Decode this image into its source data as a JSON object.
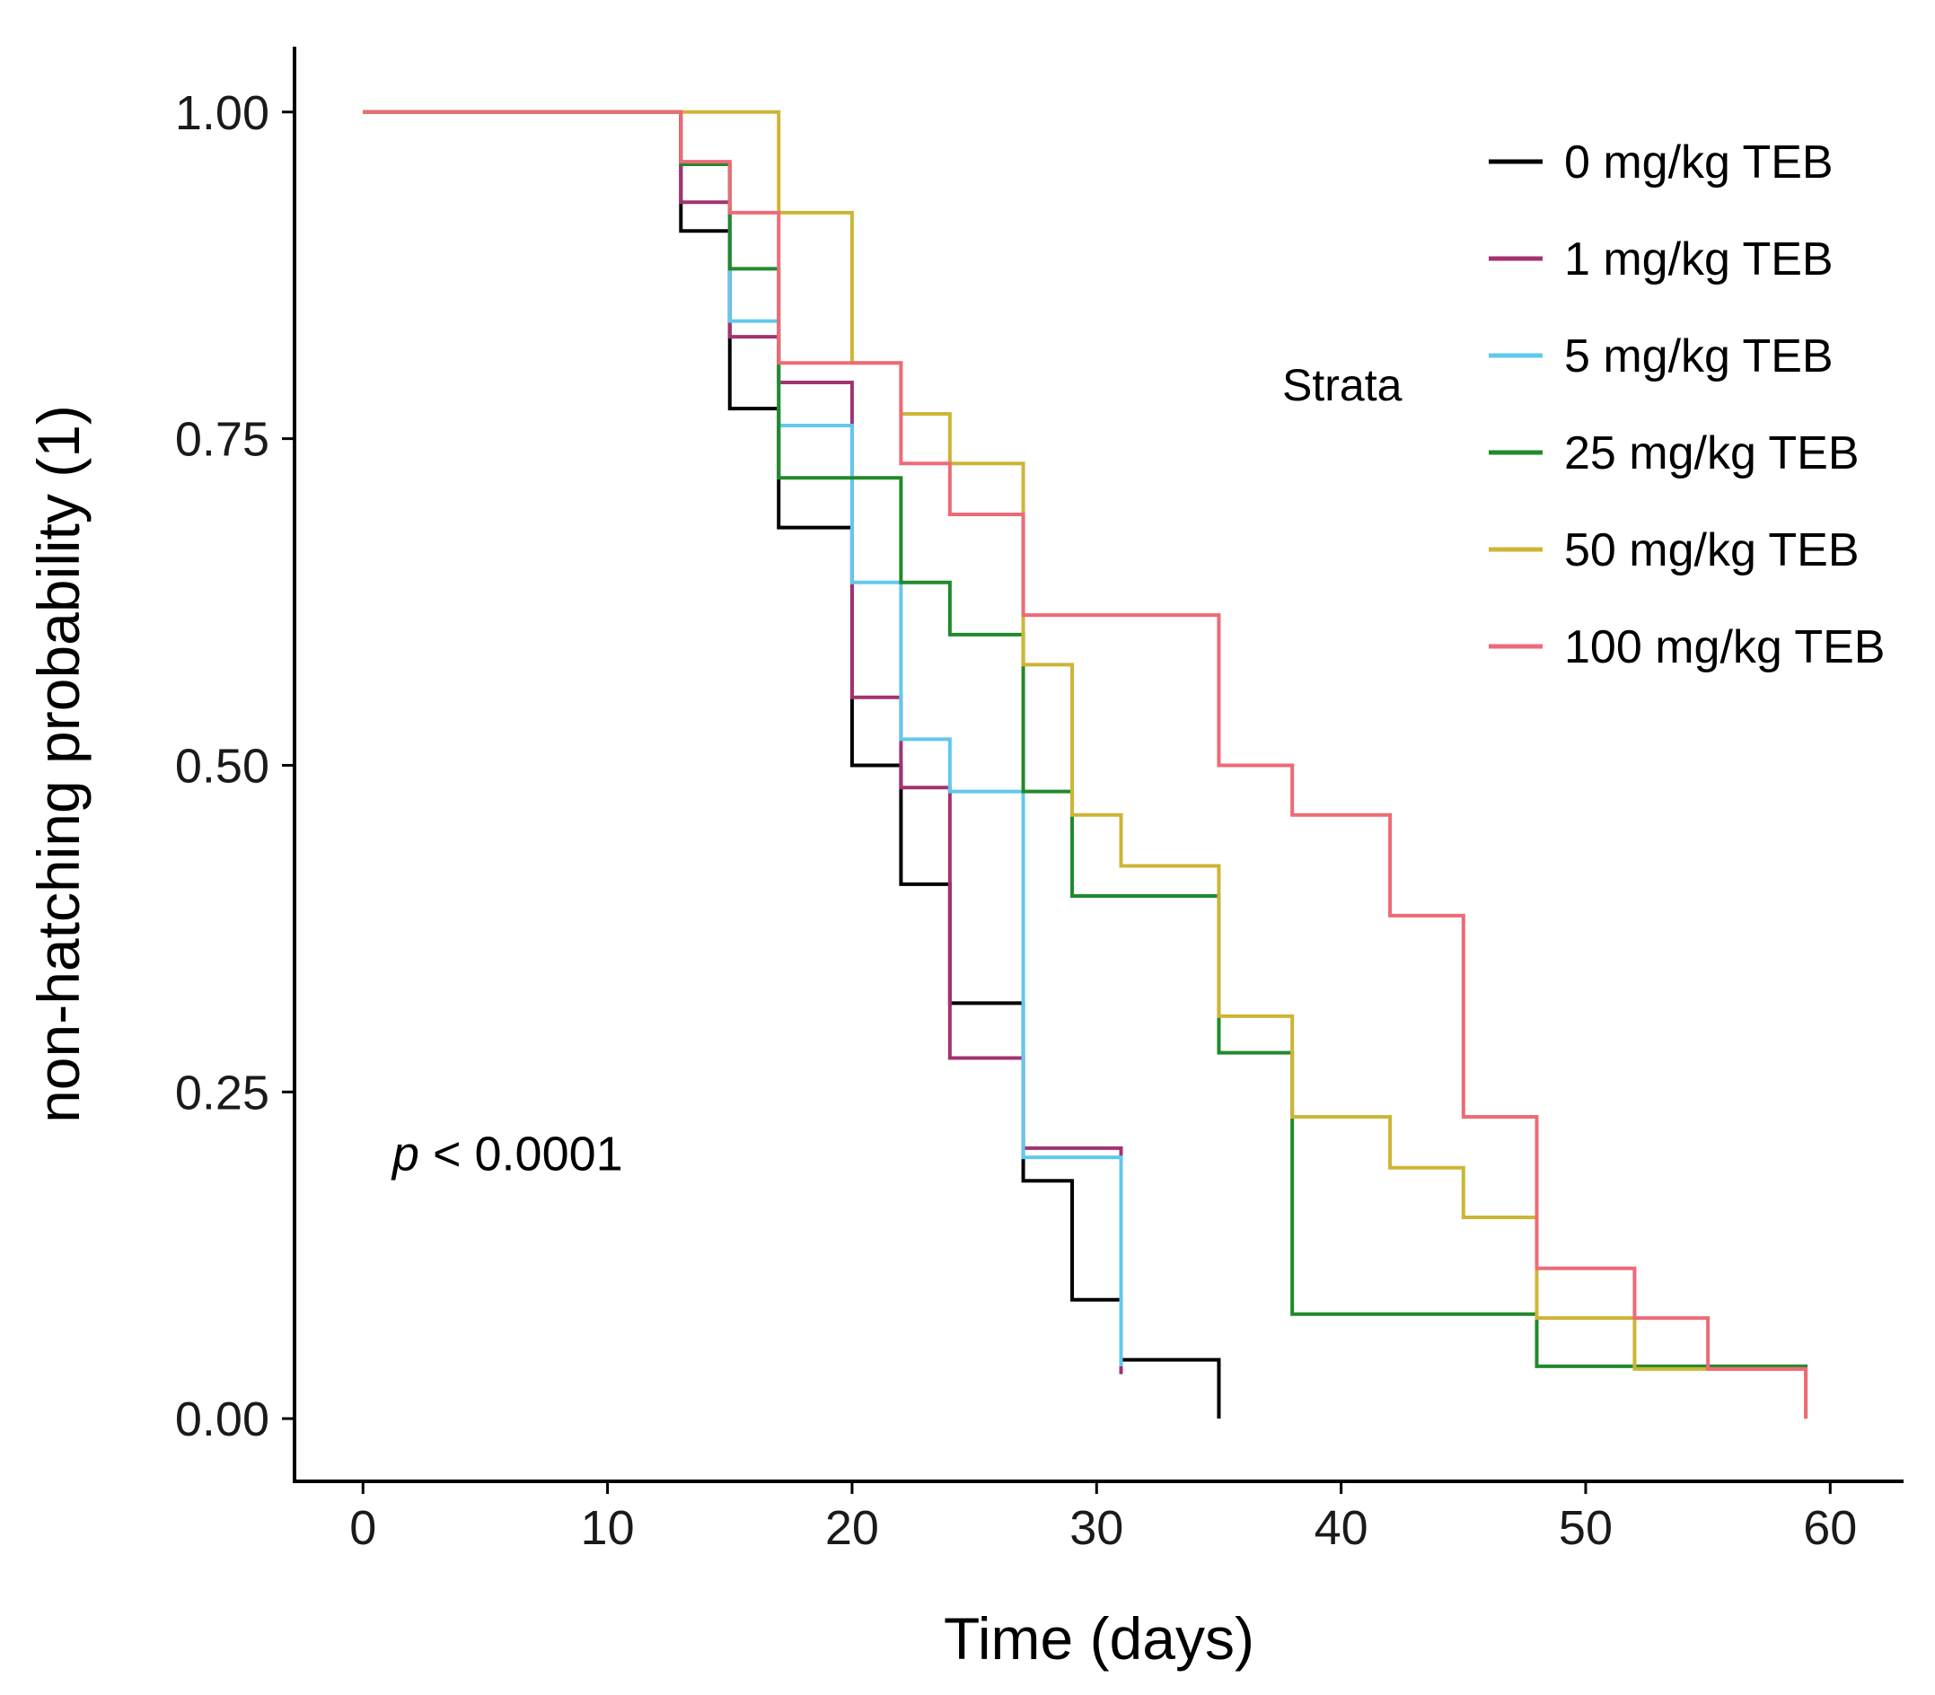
{
  "chart_data": {
    "type": "line",
    "step": true,
    "xlabel": "Time (days)",
    "ylabel": "non-hatching probability (1)",
    "xlim": [
      -2.8,
      63
    ],
    "ylim": [
      -0.048,
      1.05
    ],
    "xticks": [
      0,
      10,
      20,
      30,
      40,
      50,
      60
    ],
    "yticks": [
      0.0,
      0.25,
      0.5,
      0.75,
      1.0
    ],
    "xtick_labels": [
      "0",
      "10",
      "20",
      "30",
      "40",
      "50",
      "60"
    ],
    "ytick_labels": [
      "0.00",
      "0.25",
      "0.50",
      "0.75",
      "1.00"
    ],
    "grid": false,
    "legend_title": "Strata",
    "legend_position": "right",
    "annotation": {
      "italic": "p",
      "rest": " < 0.0001",
      "x": 1.2,
      "y": 0.19
    },
    "series": [
      {
        "name": "0 mg/kg TEB",
        "color": "#000000",
        "x": [
          0,
          13,
          15,
          17,
          20,
          22,
          24,
          27,
          29,
          31,
          35
        ],
        "y": [
          1.0,
          0.909,
          0.773,
          0.682,
          0.5,
          0.409,
          0.318,
          0.182,
          0.091,
          0.045,
          0.0
        ]
      },
      {
        "name": "1 mg/kg TEB",
        "color": "#a2336f",
        "x": [
          0,
          13,
          15,
          17,
          20,
          22,
          24,
          27,
          31
        ],
        "y": [
          1.0,
          0.931,
          0.828,
          0.793,
          0.552,
          0.483,
          0.276,
          0.207,
          0.034
        ]
      },
      {
        "name": "5 mg/kg TEB",
        "color": "#62c8ee",
        "x": [
          0,
          13,
          15,
          17,
          20,
          22,
          24,
          27,
          31
        ],
        "y": [
          1.0,
          0.96,
          0.84,
          0.76,
          0.64,
          0.52,
          0.48,
          0.2,
          0.04
        ]
      },
      {
        "name": "25 mg/kg TEB",
        "color": "#208a2c",
        "x": [
          0,
          13,
          15,
          17,
          22,
          24,
          27,
          29,
          35,
          38,
          48,
          59
        ],
        "y": [
          1.0,
          0.96,
          0.88,
          0.72,
          0.64,
          0.6,
          0.48,
          0.4,
          0.28,
          0.08,
          0.04,
          0.0
        ]
      },
      {
        "name": "50 mg/kg TEB",
        "color": "#cdb535",
        "x": [
          0,
          17,
          20,
          22,
          24,
          27,
          29,
          31,
          35,
          38,
          42,
          45,
          48,
          52,
          59
        ],
        "y": [
          1.0,
          0.923,
          0.808,
          0.769,
          0.731,
          0.577,
          0.462,
          0.423,
          0.308,
          0.231,
          0.192,
          0.154,
          0.077,
          0.038,
          0.0
        ]
      },
      {
        "name": "100 mg/kg TEB",
        "color": "#ee6a77",
        "x": [
          0,
          13,
          15,
          17,
          22,
          24,
          27,
          35,
          38,
          42,
          45,
          48,
          52,
          55,
          59
        ],
        "y": [
          1.0,
          0.962,
          0.923,
          0.808,
          0.731,
          0.692,
          0.615,
          0.5,
          0.462,
          0.385,
          0.231,
          0.115,
          0.077,
          0.038,
          0.0
        ]
      }
    ]
  }
}
